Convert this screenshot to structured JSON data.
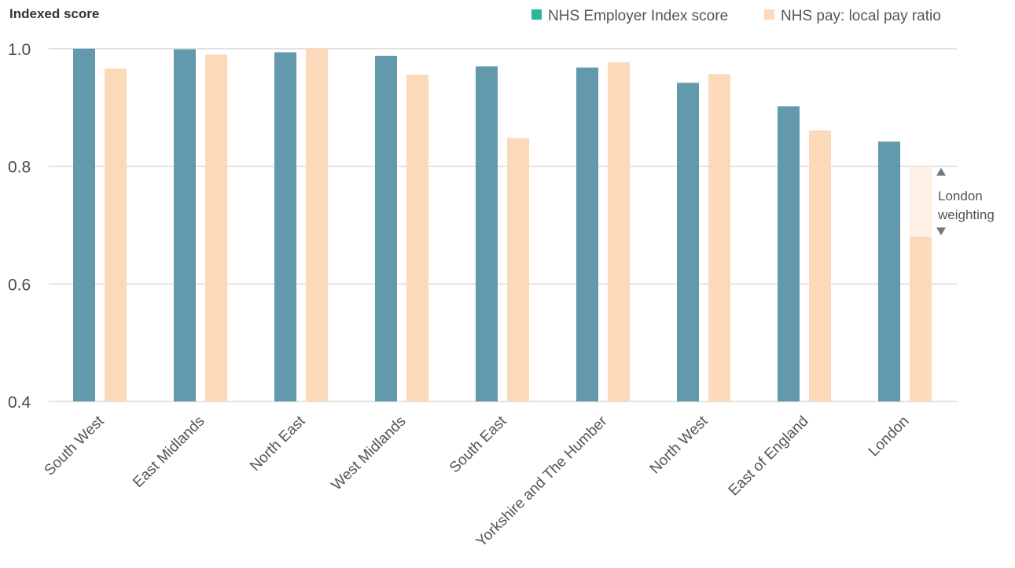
{
  "chart_data": {
    "type": "bar",
    "ylabel": "Indexed score",
    "ylim": [
      0.4,
      1.0
    ],
    "yticks": [
      "1.0",
      "0.8",
      "0.6",
      "0.4"
    ],
    "ytick_values": [
      1.0,
      0.8,
      0.6,
      0.4
    ],
    "grid": true,
    "legend_position": "top-right",
    "categories": [
      "South West",
      "East Midlands",
      "North East",
      "West Midlands",
      "South East",
      "Yorkshire and The Humber",
      "North West",
      "East of England",
      "London"
    ],
    "series": [
      {
        "name": "NHS Employer Index score",
        "color": "#6399ad",
        "legend_color": "#2fb39a",
        "values": [
          1.0,
          0.999,
          0.994,
          0.988,
          0.97,
          0.968,
          0.942,
          0.902,
          0.842
        ]
      },
      {
        "name": "NHS pay: local pay ratio",
        "color": "#fcd9b8",
        "legend_color": "#fcd9b8",
        "values": [
          0.966,
          0.99,
          1.0,
          0.956,
          0.848,
          0.977,
          0.957,
          0.861,
          0.68
        ]
      }
    ],
    "annotation": {
      "line1": "London",
      "line2": "weighting",
      "category": "London",
      "from": 0.8,
      "to": 0.68,
      "color": "#fdf0e4"
    }
  }
}
